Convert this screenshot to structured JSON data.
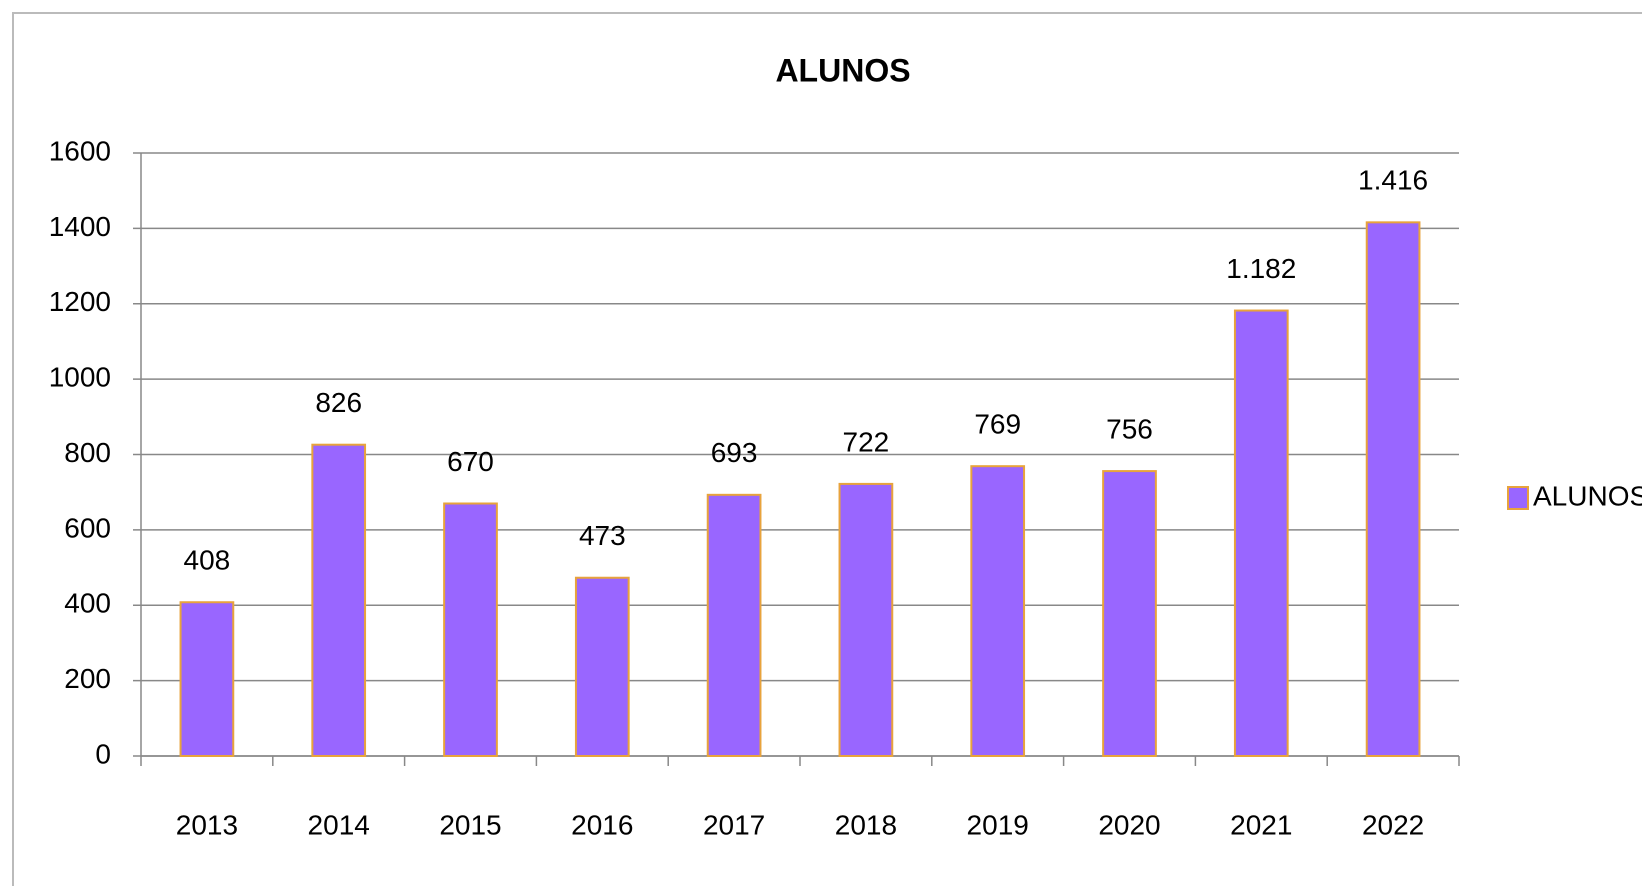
{
  "chart_data": {
    "type": "bar",
    "title": "ALUNOS",
    "categories": [
      "2013",
      "2014",
      "2015",
      "2016",
      "2017",
      "2018",
      "2019",
      "2020",
      "2021",
      "2022"
    ],
    "series": [
      {
        "name": "ALUNOS",
        "color": "#9966ff",
        "edge_color": "#e8a33c",
        "values": [
          408,
          826,
          670,
          473,
          693,
          722,
          769,
          756,
          1182,
          1416
        ],
        "value_labels": [
          "408",
          "826",
          "670",
          "473",
          "693",
          "722",
          "769",
          "756",
          "1.182",
          "1.416"
        ]
      }
    ],
    "ylim": [
      0,
      1600
    ],
    "yticks": [
      0,
      200,
      400,
      600,
      800,
      1000,
      1200,
      1400,
      1600
    ],
    "grid": true,
    "legend": "right"
  }
}
